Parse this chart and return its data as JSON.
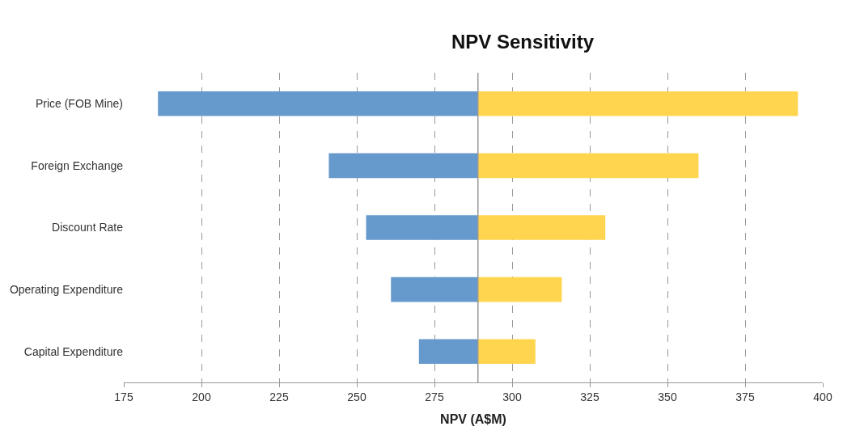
{
  "chart_data": {
    "type": "bar",
    "orientation": "horizontal",
    "title": "NPV Sensitivity",
    "xlabel": "NPV (A$M)",
    "categories": [
      "Price (FOB Mine)",
      "Foreign Exchange",
      "Discount Rate",
      "Operating Expenditure",
      "Capital Expenditure"
    ],
    "series": [
      {
        "color": "#6699cc",
        "base": [
          186,
          241,
          253,
          261,
          270
        ],
        "values": [
          103,
          48,
          36,
          28,
          19
        ]
      },
      {
        "color": "#ffd54f",
        "base": [
          289,
          289,
          289,
          289,
          289
        ],
        "values": [
          103,
          71,
          41,
          27,
          18.5
        ]
      }
    ],
    "xlim": [
      175,
      400
    ],
    "xticks": [
      175,
      200,
      225,
      250,
      275,
      300,
      325,
      350,
      375,
      400
    ],
    "grid": "x",
    "ref_lines": [
      {
        "axis": "x",
        "value": 289,
        "color": "#999999"
      }
    ]
  }
}
